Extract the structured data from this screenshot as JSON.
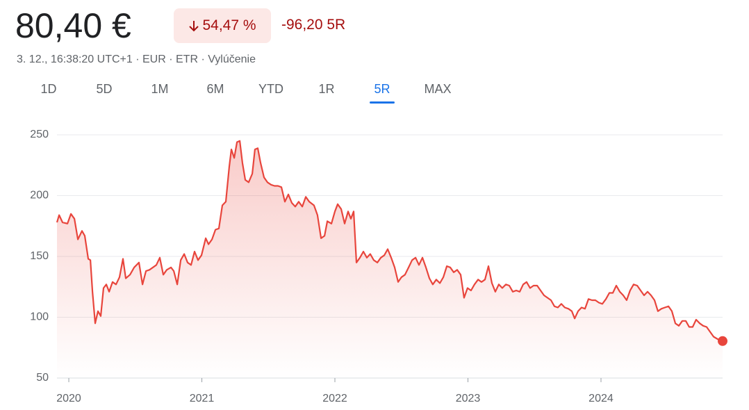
{
  "header": {
    "price": "80,40 €",
    "change_percent": "54,47 %",
    "change": "-96,20 5R",
    "subtitle": "3. 12., 16:38:20 UTC+1 · EUR · ETR · Vylúčenie"
  },
  "tabs": [
    "1D",
    "5D",
    "1M",
    "6M",
    "YTD",
    "1R",
    "5R",
    "MAX"
  ],
  "selected_tab": "5R",
  "chart_data": {
    "type": "line",
    "color": "#e8453c",
    "grid": true,
    "xlim": [
      2019.911,
      2024.914
    ],
    "xticks": [
      2020,
      2021,
      2022,
      2023,
      2024
    ],
    "ylim": [
      50,
      250
    ],
    "yticks": [
      50,
      100,
      150,
      200,
      250
    ],
    "x": [
      2019.911,
      2019.927,
      2019.953,
      2019.99,
      2020.016,
      2020.042,
      2020.068,
      2020.099,
      2020.12,
      2020.146,
      2020.162,
      2020.178,
      2020.198,
      2020.219,
      2020.24,
      2020.261,
      2020.282,
      2020.303,
      2020.329,
      2020.355,
      2020.381,
      2020.407,
      2020.428,
      2020.46,
      2020.491,
      2020.527,
      2020.554,
      2020.58,
      2020.606,
      2020.632,
      2020.658,
      2020.684,
      2020.71,
      2020.736,
      2020.768,
      2020.789,
      2020.815,
      2020.841,
      2020.867,
      2020.893,
      2020.919,
      2020.945,
      2020.971,
      2020.997,
      2021.029,
      2021.05,
      2021.076,
      2021.102,
      2021.128,
      2021.154,
      2021.18,
      2021.206,
      2021.222,
      2021.243,
      2021.264,
      2021.285,
      2021.305,
      2021.326,
      2021.352,
      2021.379,
      2021.399,
      2021.42,
      2021.441,
      2021.467,
      2021.493,
      2021.52,
      2021.546,
      2021.572,
      2021.598,
      2021.624,
      2021.65,
      2021.676,
      2021.702,
      2021.728,
      2021.755,
      2021.781,
      2021.807,
      2021.843,
      2021.869,
      2021.896,
      2021.922,
      2021.943,
      2021.974,
      2022.0,
      2022.021,
      2022.047,
      2022.073,
      2022.099,
      2022.12,
      2022.141,
      2022.162,
      2022.188,
      2022.214,
      2022.24,
      2022.266,
      2022.292,
      2022.319,
      2022.345,
      2022.371,
      2022.397,
      2022.423,
      2022.449,
      2022.475,
      2022.501,
      2022.527,
      2022.554,
      2022.58,
      2022.606,
      2022.632,
      2022.658,
      2022.684,
      2022.71,
      2022.736,
      2022.762,
      2022.789,
      2022.815,
      2022.841,
      2022.867,
      2022.893,
      2022.919,
      2022.945,
      2022.971,
      2022.997,
      2023.023,
      2023.049,
      2023.076,
      2023.102,
      2023.128,
      2023.154,
      2023.18,
      2023.206,
      2023.232,
      2023.258,
      2023.285,
      2023.311,
      2023.337,
      2023.363,
      2023.389,
      2023.415,
      2023.441,
      2023.467,
      2023.493,
      2023.52,
      2023.546,
      2023.572,
      2023.598,
      2023.624,
      2023.65,
      2023.676,
      2023.702,
      2023.728,
      2023.755,
      2023.781,
      2023.802,
      2023.828,
      2023.854,
      2023.88,
      2023.906,
      2023.932,
      2023.958,
      2023.984,
      2024.01,
      2024.037,
      2024.063,
      2024.089,
      2024.115,
      2024.141,
      2024.167,
      2024.193,
      2024.219,
      2024.245,
      2024.272,
      2024.298,
      2024.324,
      2024.35,
      2024.376,
      2024.402,
      2024.428,
      2024.454,
      2024.48,
      2024.507,
      2024.533,
      2024.559,
      2024.585,
      2024.611,
      2024.637,
      2024.663,
      2024.689,
      2024.715,
      2024.742,
      2024.768,
      2024.794,
      2024.82,
      2024.846,
      2024.877,
      2024.914
    ],
    "values": [
      178,
      184,
      178,
      177,
      185,
      181,
      164,
      171,
      167,
      148,
      147,
      121,
      95,
      105,
      101,
      124,
      127,
      121,
      129,
      127,
      133,
      148,
      132,
      135,
      141,
      145,
      127,
      138,
      139,
      141,
      143,
      149,
      135,
      139,
      141,
      138,
      127,
      147,
      152,
      145,
      143,
      154,
      147,
      151,
      165,
      160,
      164,
      172,
      173,
      192,
      195,
      224,
      238,
      231,
      244,
      245,
      227,
      213,
      211,
      218,
      238,
      239,
      227,
      215,
      211,
      209,
      208,
      208,
      207,
      195,
      201,
      194,
      191,
      195,
      191,
      199,
      195,
      192,
      184,
      165,
      167,
      179,
      177,
      187,
      193,
      189,
      177,
      187,
      181,
      187,
      145,
      149,
      154,
      149,
      152,
      147,
      145,
      149,
      151,
      156,
      149,
      141,
      129,
      133,
      135,
      141,
      147,
      149,
      143,
      149,
      141,
      132,
      127,
      131,
      128,
      133,
      142,
      141,
      137,
      139,
      135,
      116,
      124,
      122,
      127,
      131,
      129,
      131,
      142,
      128,
      121,
      127,
      124,
      127,
      126,
      121,
      122,
      121,
      127,
      129,
      124,
      126,
      126,
      122,
      118,
      116,
      114,
      109,
      108,
      111,
      108,
      107,
      105,
      99,
      105,
      108,
      107,
      115,
      114,
      114,
      112,
      111,
      115,
      120,
      120,
      126,
      121,
      118,
      114,
      122,
      127,
      126,
      122,
      118,
      121,
      118,
      114,
      105,
      107,
      108,
      109,
      105,
      95,
      93,
      97,
      97,
      92,
      92,
      98,
      95,
      93,
      92,
      88,
      84,
      82,
      80.4
    ]
  }
}
